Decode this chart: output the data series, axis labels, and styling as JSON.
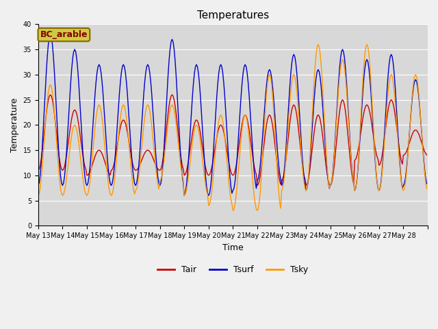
{
  "title": "Temperatures",
  "xlabel": "Time",
  "ylabel": "Temperature",
  "legend_label": "BC_arable",
  "series_labels": [
    "Tair",
    "Tsurf",
    "Tsky"
  ],
  "series_colors": [
    "#cc0000",
    "#0000cc",
    "#ff9900"
  ],
  "ylim": [
    0,
    40
  ],
  "yticks": [
    0,
    5,
    10,
    15,
    20,
    25,
    30,
    35,
    40
  ],
  "plot_bg_color": "#d8d8d8",
  "fig_bg_color": "#f0f0f0",
  "legend_box_facecolor": "#cccc44",
  "legend_box_edgecolor": "#886600",
  "legend_box_text_color": "#880000",
  "n_days": 16,
  "start_day": 13,
  "day_peaks_tsurf": [
    38,
    35,
    32,
    32,
    32,
    37,
    32,
    32,
    32,
    31,
    34,
    31,
    35,
    33,
    34,
    29
  ],
  "day_mins_tsurf": [
    8,
    8,
    8,
    8,
    8,
    8,
    6,
    6,
    7,
    9,
    8,
    7,
    8,
    7,
    7,
    8
  ],
  "day_peaks_tair": [
    26,
    23,
    15,
    21,
    15,
    26,
    21,
    20,
    22,
    22,
    24,
    22,
    25,
    24,
    25,
    19
  ],
  "day_mins_tair": [
    11,
    11,
    10,
    11,
    11,
    11,
    10,
    10,
    10,
    8,
    9,
    8,
    8,
    13,
    12,
    14
  ],
  "day_peaks_tsky": [
    28,
    20,
    24,
    24,
    24,
    24,
    20,
    22,
    22,
    30,
    30,
    36,
    33,
    36,
    30,
    30
  ],
  "day_mins_tsky": [
    6,
    6,
    6,
    6,
    7,
    9,
    6,
    4,
    3,
    3,
    7,
    7,
    8,
    7,
    7,
    7
  ],
  "grid_color": "#ffffff",
  "tick_fontsize": 7,
  "axis_label_fontsize": 9,
  "title_fontsize": 11,
  "line_width": 1.0
}
